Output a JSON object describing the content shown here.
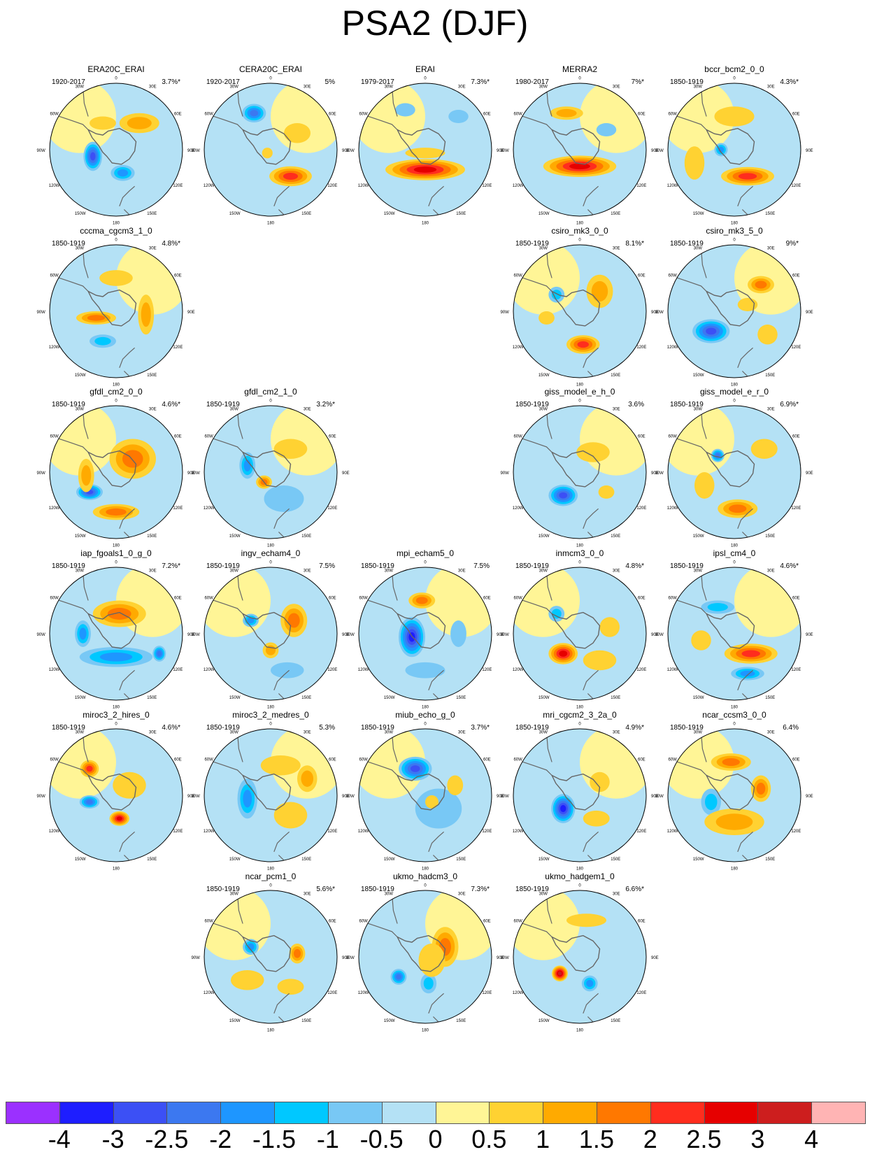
{
  "figure": {
    "title": "PSA2 (DJF)"
  },
  "lon_labels": {
    "top": "0",
    "bottom": "180",
    "left_mid": "90W",
    "right_mid": "90E",
    "upper_left": "30W",
    "upper_right": "30E",
    "left_upper": "60W",
    "right_upper": "60E",
    "left_lower": "120W",
    "right_lower": "120E",
    "lower_left": "150W",
    "lower_right": "150E"
  },
  "panels": [
    {
      "name": "ERA20C_ERAI",
      "period": "1920-2017",
      "variance": "3.7%*",
      "features": [
        [
          0.35,
          -0.4,
          0.3,
          0.15,
          1
        ],
        [
          -0.35,
          0.1,
          0.14,
          0.22,
          -2.5
        ],
        [
          0.1,
          0.35,
          0.18,
          0.12,
          -1.5
        ],
        [
          -0.2,
          -0.4,
          0.2,
          0.1,
          0.5
        ]
      ]
    },
    {
      "name": "CERA20C_ERAI",
      "period": "1920-2017",
      "variance": "5%",
      "features": [
        [
          -0.25,
          -0.55,
          0.18,
          0.14,
          -2
        ],
        [
          0.3,
          0.4,
          0.32,
          0.15,
          2
        ],
        [
          -0.05,
          0.05,
          0.08,
          0.08,
          0.5
        ],
        [
          0.4,
          -0.25,
          0.2,
          0.15,
          0.5
        ]
      ]
    },
    {
      "name": "ERAI",
      "period": "1979-2017",
      "variance": "7.3%*",
      "features": [
        [
          0,
          0.3,
          0.6,
          0.16,
          2.5
        ],
        [
          0,
          0.05,
          0.3,
          0.08,
          0.5
        ],
        [
          -0.3,
          -0.6,
          0.15,
          0.1,
          -0.5
        ],
        [
          0.5,
          -0.5,
          0.15,
          0.1,
          -0.5
        ]
      ]
    },
    {
      "name": "MERRA2",
      "period": "1980-2017",
      "variance": "7%*",
      "features": [
        [
          0,
          0.25,
          0.55,
          0.16,
          2.5
        ],
        [
          -0.2,
          -0.55,
          0.25,
          0.1,
          1
        ],
        [
          0.4,
          -0.3,
          0.15,
          0.1,
          -0.5
        ]
      ]
    },
    {
      "name": "bccr_bcm2_0_0",
      "period": "1850-1919",
      "variance": "4.3%*",
      "features": [
        [
          0.2,
          0.4,
          0.4,
          0.14,
          2
        ],
        [
          -0.2,
          0,
          0.1,
          0.1,
          -1.5
        ],
        [
          0,
          -0.5,
          0.3,
          0.15,
          0.5
        ],
        [
          -0.6,
          0.2,
          0.15,
          0.25,
          0.5
        ]
      ]
    },
    {
      "name": "cccma_cgcm3_1_0",
      "period": "1850-1919",
      "variance": "4.8%*",
      "features": [
        [
          -0.3,
          0.1,
          0.3,
          0.1,
          1.5
        ],
        [
          -0.2,
          0.45,
          0.2,
          0.1,
          -1
        ],
        [
          0.45,
          0.05,
          0.12,
          0.3,
          1
        ],
        [
          0,
          -0.5,
          0.25,
          0.12,
          0.5
        ]
      ]
    },
    null,
    null,
    {
      "name": "csiro_mk3_0_0",
      "period": "1850-1919",
      "variance": "8.1%*",
      "features": [
        [
          0.05,
          0.5,
          0.25,
          0.14,
          2
        ],
        [
          -0.35,
          -0.25,
          0.12,
          0.12,
          -1
        ],
        [
          0.3,
          -0.3,
          0.2,
          0.25,
          1
        ],
        [
          -0.5,
          0.1,
          0.12,
          0.1,
          0.5
        ]
      ]
    },
    {
      "name": "csiro_mk3_5_0",
      "period": "1850-1919",
      "variance": "9%*",
      "features": [
        [
          -0.35,
          0.3,
          0.28,
          0.18,
          -2.5
        ],
        [
          0.4,
          -0.4,
          0.2,
          0.13,
          1.5
        ],
        [
          0.5,
          0.35,
          0.15,
          0.15,
          0.5
        ],
        [
          0.2,
          -0.1,
          0.15,
          0.1,
          0.5
        ]
      ]
    },
    {
      "name": "gfdl_cm2_0_0",
      "period": "1850-1919",
      "variance": "4.6%*",
      "features": [
        [
          0.25,
          -0.2,
          0.35,
          0.3,
          1.5
        ],
        [
          -0.4,
          0.3,
          0.2,
          0.12,
          -2.5
        ],
        [
          0,
          0.6,
          0.35,
          0.12,
          1.5
        ],
        [
          -0.45,
          0.05,
          0.12,
          0.25,
          1
        ]
      ]
    },
    {
      "name": "gfdl_cm2_1_0",
      "period": "1850-1919",
      "variance": "3.2%*",
      "features": [
        [
          -0.1,
          0.15,
          0.12,
          0.1,
          1.5
        ],
        [
          -0.35,
          -0.1,
          0.12,
          0.2,
          -1.5
        ],
        [
          0.3,
          -0.35,
          0.25,
          0.15,
          0.5
        ],
        [
          0.2,
          0.4,
          0.3,
          0.2,
          -0.5
        ]
      ]
    },
    null,
    {
      "name": "giss_model_e_h_0",
      "period": "1850-1919",
      "variance": "3.6%",
      "features": [
        [
          -0.25,
          0.35,
          0.22,
          0.16,
          -2.5
        ],
        [
          0.2,
          -0.3,
          0.25,
          0.15,
          0.5
        ],
        [
          0.4,
          0.3,
          0.12,
          0.1,
          0.5
        ]
      ]
    },
    {
      "name": "giss_model_e_r_0",
      "period": "1850-1919",
      "variance": "6.9%*",
      "features": [
        [
          0.05,
          0.55,
          0.3,
          0.14,
          1.5
        ],
        [
          -0.25,
          -0.25,
          0.1,
          0.1,
          -2
        ],
        [
          0.45,
          -0.35,
          0.2,
          0.15,
          0.5
        ],
        [
          -0.45,
          0.2,
          0.15,
          0.2,
          0.5
        ]
      ]
    },
    {
      "name": "iap_fgoals1_0_g_0",
      "period": "1850-1919",
      "variance": "7.2%*",
      "features": [
        [
          0.05,
          -0.3,
          0.4,
          0.2,
          1.5
        ],
        [
          0,
          0.35,
          0.55,
          0.15,
          -1.5
        ],
        [
          -0.5,
          0,
          0.12,
          0.2,
          -1.5
        ],
        [
          0.65,
          0.3,
          0.1,
          0.12,
          -2
        ]
      ]
    },
    {
      "name": "ingv_echam4_0",
      "period": "1850-1919",
      "variance": "7.5%",
      "features": [
        [
          0.35,
          -0.2,
          0.2,
          0.25,
          1.5
        ],
        [
          -0.3,
          -0.2,
          0.12,
          0.1,
          -1.5
        ],
        [
          0,
          0.25,
          0.12,
          0.12,
          1
        ],
        [
          0.25,
          0.55,
          0.25,
          0.12,
          -0.5
        ]
      ]
    },
    {
      "name": "mpi_echam5_0",
      "period": "1850-1919",
      "variance": "7.5%",
      "features": [
        [
          -0.2,
          0.05,
          0.2,
          0.3,
          -3
        ],
        [
          -0.05,
          -0.5,
          0.2,
          0.12,
          1.5
        ],
        [
          0.5,
          0,
          0.12,
          0.2,
          -0.5
        ],
        [
          0,
          0.55,
          0.3,
          0.12,
          -0.5
        ]
      ]
    },
    {
      "name": "inmcm3_0_0",
      "period": "1850-1919",
      "variance": "4.8%*",
      "features": [
        [
          -0.25,
          0.3,
          0.22,
          0.16,
          2.5
        ],
        [
          -0.35,
          -0.3,
          0.12,
          0.12,
          -1
        ],
        [
          0.3,
          0.4,
          0.25,
          0.15,
          0.5
        ],
        [
          0.45,
          -0.1,
          0.15,
          0.15,
          0.5
        ]
      ]
    },
    {
      "name": "ipsl_cm4_0",
      "period": "1850-1919",
      "variance": "4.6%*",
      "features": [
        [
          0.25,
          0.3,
          0.4,
          0.15,
          2
        ],
        [
          -0.25,
          -0.4,
          0.25,
          0.1,
          -1
        ],
        [
          0.2,
          0.6,
          0.25,
          0.1,
          -1.5
        ],
        [
          -0.5,
          0.1,
          0.15,
          0.15,
          0.5
        ]
      ]
    },
    {
      "name": "miroc3_2_hires_0",
      "period": "1850-1919",
      "variance": "4.6%*",
      "features": [
        [
          -0.4,
          -0.4,
          0.14,
          0.13,
          2
        ],
        [
          0.05,
          0.35,
          0.15,
          0.11,
          2.5
        ],
        [
          -0.4,
          0.1,
          0.15,
          0.1,
          -2
        ],
        [
          0.2,
          -0.15,
          0.25,
          0.2,
          0.5
        ]
      ]
    },
    {
      "name": "miroc3_2_medres_0",
      "period": "1850-1919",
      "variance": "5.3%",
      "features": [
        [
          0.55,
          -0.25,
          0.15,
          0.2,
          1
        ],
        [
          -0.35,
          0.05,
          0.15,
          0.3,
          -1.5
        ],
        [
          0.15,
          -0.45,
          0.3,
          0.15,
          0.5
        ],
        [
          0.3,
          0.3,
          0.25,
          0.2,
          0.5
        ]
      ]
    },
    {
      "name": "miub_echo_g_0",
      "period": "1850-1919",
      "variance": "3.7%*",
      "features": [
        [
          -0.15,
          -0.4,
          0.25,
          0.18,
          -2.5
        ],
        [
          0.2,
          0.2,
          0.35,
          0.3,
          -0.5
        ],
        [
          0.45,
          -0.15,
          0.12,
          0.15,
          0.5
        ],
        [
          0.1,
          0.1,
          0.1,
          0.1,
          0.5
        ]
      ]
    },
    {
      "name": "mri_cgcm2_3_2a_0",
      "period": "1850-1919",
      "variance": "4.9%*",
      "features": [
        [
          -0.25,
          0.2,
          0.18,
          0.22,
          -3
        ],
        [
          0.25,
          0.35,
          0.2,
          0.12,
          0.5
        ],
        [
          0.3,
          -0.2,
          0.15,
          0.15,
          0.5
        ]
      ]
    },
    {
      "name": "ncar_ccsm3_0_0",
      "period": "1850-1919",
      "variance": "6.4%",
      "features": [
        [
          -0.05,
          -0.5,
          0.3,
          0.13,
          1.5
        ],
        [
          0.4,
          -0.1,
          0.15,
          0.2,
          1.5
        ],
        [
          -0.35,
          0.1,
          0.15,
          0.2,
          -1
        ],
        [
          0,
          0.4,
          0.45,
          0.2,
          1
        ]
      ]
    },
    null,
    {
      "name": "ncar_pcm1_0",
      "period": "1850-1919",
      "variance": "5.6%*",
      "features": [
        [
          0.4,
          -0.05,
          0.12,
          0.15,
          1.5
        ],
        [
          -0.3,
          -0.15,
          0.12,
          0.12,
          -1.5
        ],
        [
          -0.35,
          0.35,
          0.25,
          0.15,
          0.5
        ],
        [
          0.3,
          0.45,
          0.2,
          0.12,
          0.5
        ]
      ]
    },
    {
      "name": "ukmo_hadcm3_0",
      "period": "1850-1919",
      "variance": "7.3%*",
      "features": [
        [
          0.3,
          -0.15,
          0.2,
          0.3,
          1.5
        ],
        [
          -0.4,
          0.3,
          0.12,
          0.12,
          -2
        ],
        [
          0.05,
          0.4,
          0.12,
          0.15,
          -1
        ],
        [
          0.1,
          0.05,
          0.2,
          0.25,
          0.5
        ]
      ]
    },
    {
      "name": "ukmo_hadgem1_0",
      "period": "1850-1919",
      "variance": "6.6%*",
      "features": [
        [
          -0.3,
          0.25,
          0.12,
          0.12,
          3
        ],
        [
          0.15,
          0.4,
          0.12,
          0.12,
          -1.5
        ],
        [
          0.1,
          -0.55,
          0.3,
          0.1,
          0.5
        ]
      ]
    }
  ],
  "colorbar": {
    "colors": [
      "#9B30FF",
      "#1E1EFF",
      "#3C50F5",
      "#3C78F0",
      "#1E96FF",
      "#00C8FF",
      "#78C8F5",
      "#B4E1F5",
      "#FFF596",
      "#FFD232",
      "#FFAA00",
      "#FF7800",
      "#FF2D1E",
      "#E60000",
      "#CD1E1E",
      "#FFB4B4"
    ],
    "labels": [
      "-4",
      "-3",
      "-2.5",
      "-2",
      "-1.5",
      "-1",
      "-0.5",
      "0",
      "0.5",
      "1",
      "1.5",
      "2",
      "2.5",
      "3",
      "4"
    ]
  }
}
